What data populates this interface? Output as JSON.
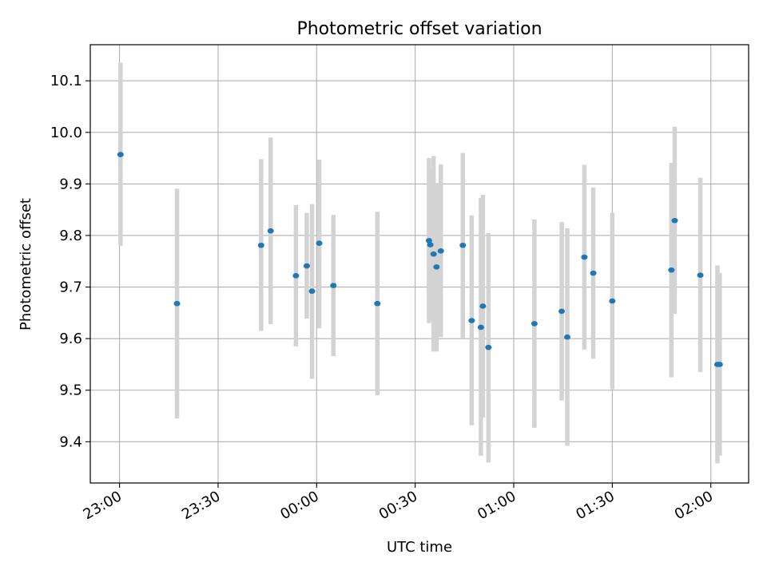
{
  "chart_data": {
    "type": "scatter",
    "title": "Photometric offset variation",
    "xlabel": "UTC time",
    "ylabel": "Photometric offset",
    "x_ticks": [
      "23:00",
      "23:30",
      "00:00",
      "00:30",
      "01:00",
      "01:30",
      "02:00"
    ],
    "x_tick_values": [
      0,
      30,
      60,
      90,
      120,
      150,
      180
    ],
    "x_unit": "minutes after 23:00 UTC",
    "xlim": [
      -8.9,
      191.5
    ],
    "y_ticks": [
      "9.4",
      "9.5",
      "9.6",
      "9.7",
      "9.8",
      "9.9",
      "10.0",
      "10.1"
    ],
    "y_tick_values": [
      9.4,
      9.5,
      9.6,
      9.7,
      9.8,
      9.9,
      10.0,
      10.1
    ],
    "ylim": [
      9.32,
      10.17
    ],
    "grid": true,
    "colors": {
      "points": "#1f77b4",
      "errorbars": "#d3d3d3",
      "grid": "#b0b0b0"
    },
    "series": [
      {
        "points": [
          {
            "x": 0.3,
            "y": 9.957,
            "lo": 9.78,
            "hi": 10.135
          },
          {
            "x": 17.5,
            "y": 9.668,
            "lo": 9.445,
            "hi": 9.891
          },
          {
            "x": 43.1,
            "y": 9.781,
            "lo": 9.615,
            "hi": 9.948
          },
          {
            "x": 46.0,
            "y": 9.809,
            "lo": 9.628,
            "hi": 9.99
          },
          {
            "x": 53.7,
            "y": 9.722,
            "lo": 9.585,
            "hi": 9.859
          },
          {
            "x": 57.0,
            "y": 9.741,
            "lo": 9.639,
            "hi": 9.844
          },
          {
            "x": 58.6,
            "y": 9.692,
            "lo": 9.522,
            "hi": 9.861
          },
          {
            "x": 60.8,
            "y": 9.785,
            "lo": 9.62,
            "hi": 9.947
          },
          {
            "x": 65.1,
            "y": 9.703,
            "lo": 9.566,
            "hi": 9.84
          },
          {
            "x": 78.5,
            "y": 9.668,
            "lo": 9.49,
            "hi": 9.846
          },
          {
            "x": 94.2,
            "y": 9.79,
            "lo": 9.63,
            "hi": 9.95
          },
          {
            "x": 94.6,
            "y": 9.782,
            "lo": 9.635,
            "hi": 9.93
          },
          {
            "x": 95.6,
            "y": 9.764,
            "lo": 9.575,
            "hi": 9.954
          },
          {
            "x": 96.5,
            "y": 9.739,
            "lo": 9.575,
            "hi": 9.902
          },
          {
            "x": 97.8,
            "y": 9.77,
            "lo": 9.603,
            "hi": 9.938
          },
          {
            "x": 104.5,
            "y": 9.781,
            "lo": 9.6,
            "hi": 9.96
          },
          {
            "x": 107.2,
            "y": 9.635,
            "lo": 9.432,
            "hi": 9.839
          },
          {
            "x": 110.0,
            "y": 9.622,
            "lo": 9.373,
            "hi": 9.873
          },
          {
            "x": 110.6,
            "y": 9.663,
            "lo": 9.447,
            "hi": 9.879
          },
          {
            "x": 112.3,
            "y": 9.583,
            "lo": 9.36,
            "hi": 9.805
          },
          {
            "x": 126.3,
            "y": 9.629,
            "lo": 9.427,
            "hi": 9.831
          },
          {
            "x": 134.6,
            "y": 9.653,
            "lo": 9.48,
            "hi": 9.826
          },
          {
            "x": 136.3,
            "y": 9.603,
            "lo": 9.392,
            "hi": 9.814
          },
          {
            "x": 150.0,
            "y": 9.673,
            "lo": 9.502,
            "hi": 9.844
          },
          {
            "x": 141.5,
            "y": 9.758,
            "lo": 9.579,
            "hi": 9.937
          },
          {
            "x": 144.2,
            "y": 9.727,
            "lo": 9.561,
            "hi": 9.893
          },
          {
            "x": 168.0,
            "y": 9.733,
            "lo": 9.525,
            "hi": 9.941
          },
          {
            "x": 169.0,
            "y": 9.829,
            "lo": 9.648,
            "hi": 10.011
          },
          {
            "x": 176.8,
            "y": 9.723,
            "lo": 9.535,
            "hi": 9.912
          },
          {
            "x": 182.0,
            "y": 9.55,
            "lo": 9.358,
            "hi": 9.742
          },
          {
            "x": 182.7,
            "y": 9.55,
            "lo": 9.373,
            "hi": 9.727
          }
        ]
      }
    ]
  }
}
